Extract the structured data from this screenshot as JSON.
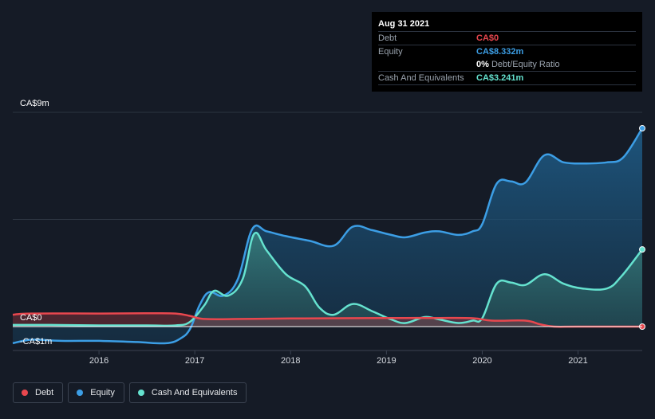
{
  "tooltip": {
    "date": "Aug 31 2021",
    "rows": [
      {
        "label": "Debt",
        "value": "CA$0",
        "color": "#e8474e"
      },
      {
        "label": "Equity",
        "value": "CA$8.332m",
        "color": "#3c9ee5"
      },
      {
        "label": "",
        "value": "0%",
        "suffix": "Debt/Equity Ratio",
        "color": "#ffffff"
      },
      {
        "label": "Cash And Equivalents",
        "value": "CA$3.241m",
        "color": "#65e2cf"
      }
    ]
  },
  "legend": [
    {
      "label": "Debt",
      "color": "#e8474e"
    },
    {
      "label": "Equity",
      "color": "#3c9ee5"
    },
    {
      "label": "Cash And Equivalents",
      "color": "#65e2cf"
    }
  ],
  "chart_data": {
    "type": "area",
    "y_labels": [
      "CA$9m",
      "CA$0",
      "-CA$1m"
    ],
    "ylim": [
      -1,
      9
    ],
    "xlim": [
      2015.1,
      2021.67
    ],
    "x_ticks": [
      2016,
      2017,
      2018,
      2019,
      2020,
      2021
    ],
    "x_tick_labels": [
      "2016",
      "2017",
      "2018",
      "2019",
      "2020",
      "2021"
    ],
    "series": [
      {
        "name": "Debt",
        "color": "#e8474e",
        "x": [
          2015.1,
          2015.3,
          2016.0,
          2016.5,
          2016.8,
          2016.95,
          2017.1,
          2017.5,
          2018.0,
          2019.0,
          2019.5,
          2019.9,
          2020.1,
          2020.45,
          2020.6,
          2020.75,
          2021.0,
          2021.67
        ],
        "y": [
          0.5,
          0.55,
          0.55,
          0.56,
          0.55,
          0.45,
          0.32,
          0.32,
          0.34,
          0.36,
          0.36,
          0.35,
          0.25,
          0.25,
          0.1,
          0.0,
          0.0,
          0.0
        ]
      },
      {
        "name": "Equity",
        "color": "#3c9ee5",
        "x": [
          2015.1,
          2015.3,
          2015.6,
          2016.0,
          2016.4,
          2016.7,
          2016.85,
          2016.95,
          2017.05,
          2017.15,
          2017.3,
          2017.45,
          2017.6,
          2017.75,
          2017.95,
          2018.2,
          2018.45,
          2018.65,
          2018.85,
          2019.05,
          2019.2,
          2019.4,
          2019.55,
          2019.75,
          2019.9,
          2020.0,
          2020.15,
          2020.3,
          2020.45,
          2020.65,
          2020.85,
          2021.05,
          2021.3,
          2021.47,
          2021.67
        ],
        "y": [
          -0.7,
          -0.55,
          -0.6,
          -0.6,
          -0.65,
          -0.7,
          -0.5,
          -0.1,
          0.9,
          1.45,
          1.3,
          2.0,
          4.1,
          4.0,
          3.8,
          3.6,
          3.4,
          4.2,
          4.05,
          3.85,
          3.75,
          3.95,
          4.0,
          3.85,
          4.0,
          4.3,
          6.0,
          6.1,
          6.05,
          7.2,
          6.9,
          6.85,
          6.9,
          7.1,
          8.33
        ]
      },
      {
        "name": "Cash And Equivalents",
        "color": "#65e2cf",
        "x": [
          2015.1,
          2015.5,
          2016.0,
          2016.5,
          2016.8,
          2016.95,
          2017.1,
          2017.2,
          2017.35,
          2017.5,
          2017.62,
          2017.75,
          2017.95,
          2018.15,
          2018.3,
          2018.45,
          2018.65,
          2018.85,
          2019.05,
          2019.2,
          2019.4,
          2019.55,
          2019.75,
          2019.9,
          2020.0,
          2020.15,
          2020.3,
          2020.45,
          2020.65,
          2020.85,
          2021.05,
          2021.3,
          2021.45,
          2021.67
        ],
        "y": [
          0.07,
          0.07,
          0.05,
          0.05,
          0.05,
          0.2,
          0.9,
          1.5,
          1.3,
          2.0,
          3.9,
          3.2,
          2.2,
          1.7,
          0.8,
          0.5,
          0.95,
          0.65,
          0.3,
          0.15,
          0.4,
          0.3,
          0.15,
          0.25,
          0.35,
          1.8,
          1.85,
          1.75,
          2.2,
          1.8,
          1.6,
          1.6,
          2.1,
          3.24
        ]
      }
    ]
  }
}
